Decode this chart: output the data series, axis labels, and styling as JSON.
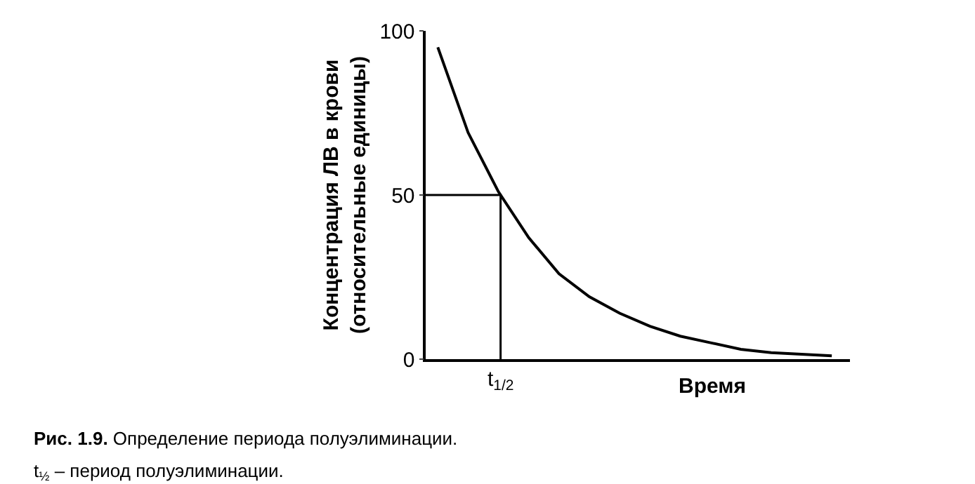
{
  "chart_data": {
    "type": "line",
    "xlabel": "Время",
    "ylabel": "Концентрация ЛВ в крови\n(относительные единицы)",
    "categories": [
      null,
      null,
      null,
      null,
      null,
      null,
      null,
      null,
      null,
      null,
      null,
      null,
      null,
      null
    ],
    "series": [
      {
        "color": "#000000",
        "values": [
          95,
          69,
          51,
          37,
          26,
          19,
          14,
          10,
          7,
          5,
          3,
          2,
          1.5,
          1
        ]
      }
    ],
    "ylim": [
      0,
      100
    ],
    "yticks": [
      0,
      50,
      100
    ],
    "line_style": "solid",
    "ref_lines": [
      {
        "axis": "y",
        "value": 50,
        "color": "#000000"
      }
    ],
    "annotations": [
      "t$_{1/2}$",
      "Рис. 1.9. Определение периода полуэлиминации.",
      "t$_{½}$ – период полуэлиминации."
    ]
  }
}
